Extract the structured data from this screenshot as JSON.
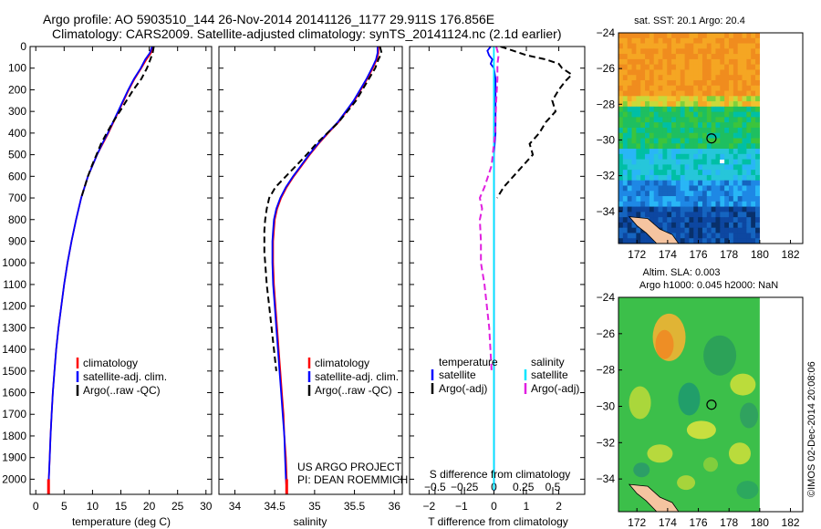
{
  "header": {
    "line1": "Argo profile: AO 5903510_144 26-Nov-2014 20141126_1177 29.911S 176.856E",
    "line2": "Climatology: CARS2009. Satellite-adjusted climatology: synTS_20141124.nc (2.1d earlier)"
  },
  "colors": {
    "climatology": "#ff0000",
    "satellite": "#0000ff",
    "argo": "#000000",
    "sal_satellite": "#00e5ff",
    "sal_argo": "#e020e0",
    "land": "#f5c4a0"
  },
  "chart_data": [
    {
      "type": "line",
      "panel": "temperature",
      "xlabel": "temperature (deg C)",
      "xlim": [
        -1,
        31
      ],
      "xticks": [
        0,
        5,
        10,
        15,
        20,
        25,
        30
      ],
      "ylim": [
        2070,
        0
      ],
      "yticks": [
        0,
        100,
        200,
        300,
        400,
        500,
        600,
        700,
        800,
        900,
        1000,
        1100,
        1200,
        1300,
        1400,
        1500,
        1600,
        1700,
        1800,
        1900,
        2000
      ],
      "series": [
        {
          "name": "climatology",
          "color": "#ff0000",
          "dash": "",
          "depth": [
            0,
            30,
            60,
            100,
            150,
            200,
            250,
            300,
            350,
            400,
            450,
            500,
            550,
            600,
            650,
            700,
            800,
            900,
            1000,
            1100,
            1200,
            1300,
            1400,
            1500,
            1600,
            1700,
            1800,
            1900,
            2000,
            2050
          ],
          "values": [
            20.6,
            20.3,
            19.5,
            18.6,
            17.4,
            16.4,
            15.5,
            14.6,
            13.7,
            12.8,
            11.8,
            10.8,
            10.0,
            9.2,
            8.6,
            8.0,
            7.1,
            6.3,
            5.6,
            5.0,
            4.5,
            4.0,
            3.6,
            3.3,
            3.0,
            2.8,
            2.6,
            2.45,
            2.3,
            2.25
          ]
        },
        {
          "name": "satellite-adj. clim.",
          "color": "#0000ff",
          "dash": "",
          "depth": [
            0,
            30,
            60,
            100,
            150,
            200,
            250,
            300,
            350,
            400,
            450,
            500,
            550,
            600,
            650,
            700,
            800,
            900,
            1000,
            1100,
            1200,
            1300,
            1400,
            1500,
            1600,
            1700,
            1800,
            1900,
            2000,
            2050
          ],
          "values": [
            20.5,
            20.1,
            19.3,
            18.5,
            17.3,
            16.3,
            15.4,
            14.5,
            13.6,
            12.7,
            11.7,
            10.8,
            10.0,
            9.2,
            8.6,
            8.0,
            7.1,
            6.3,
            5.6,
            5.0,
            4.5,
            4.0,
            3.6,
            3.3,
            3.0,
            2.8,
            2.6,
            2.45,
            2.3,
            2.25
          ]
        },
        {
          "name": "Argo(..raw -QC)",
          "color": "#000000",
          "dash": "7,4",
          "depth": [
            0,
            30,
            60,
            100,
            150,
            200,
            250,
            300,
            350,
            400,
            450,
            500,
            550,
            600,
            650,
            700
          ],
          "values": [
            20.8,
            20.6,
            20.2,
            19.6,
            18.6,
            17.2,
            16.0,
            14.8,
            13.6,
            12.5,
            11.5,
            10.7,
            9.9,
            9.2,
            8.6,
            8.0
          ]
        }
      ],
      "legend": [
        "climatology",
        "satellite-adj. clim.",
        "Argo(..raw -QC)"
      ]
    },
    {
      "type": "line",
      "panel": "salinity",
      "xlabel": "salinity",
      "xlim": [
        33.8,
        36.1
      ],
      "xticks": [
        34,
        34.5,
        35,
        35.5,
        36
      ],
      "ylim": [
        2070,
        0
      ],
      "series": [
        {
          "name": "climatology",
          "color": "#ff0000",
          "dash": "",
          "depth": [
            0,
            30,
            60,
            100,
            150,
            200,
            250,
            300,
            350,
            400,
            450,
            500,
            550,
            600,
            650,
            700,
            750,
            800,
            850,
            900,
            950,
            1000,
            1100,
            1200,
            1300,
            1400,
            1500,
            1600,
            1700,
            1800,
            1900,
            2000,
            2050
          ],
          "values": [
            35.8,
            35.8,
            35.78,
            35.73,
            35.66,
            35.58,
            35.5,
            35.4,
            35.3,
            35.17,
            35.05,
            34.94,
            34.84,
            34.74,
            34.65,
            34.58,
            34.53,
            34.5,
            34.49,
            34.48,
            34.48,
            34.48,
            34.49,
            34.51,
            34.53,
            34.55,
            34.57,
            34.59,
            34.61,
            34.62,
            34.64,
            34.65,
            34.65
          ]
        },
        {
          "name": "satellite-adj. clim.",
          "color": "#0000ff",
          "dash": "",
          "depth": [
            0,
            30,
            60,
            100,
            150,
            200,
            250,
            300,
            350,
            400,
            450,
            500,
            550,
            600,
            650,
            700,
            750,
            800,
            850,
            900,
            950,
            1000,
            1100,
            1200,
            1300,
            1400,
            1500,
            1600,
            1700,
            1800,
            1900,
            2000,
            2050
          ],
          "values": [
            35.79,
            35.79,
            35.77,
            35.72,
            35.65,
            35.57,
            35.49,
            35.39,
            35.29,
            35.16,
            35.04,
            34.93,
            34.83,
            34.73,
            34.64,
            34.57,
            34.52,
            34.49,
            34.48,
            34.47,
            34.47,
            34.47,
            34.48,
            34.5,
            34.52,
            34.54,
            34.56,
            34.58,
            34.6,
            34.62,
            34.63,
            34.64,
            34.65
          ]
        },
        {
          "name": "Argo(..raw -QC)",
          "color": "#000000",
          "dash": "7,4",
          "depth": [
            0,
            30,
            60,
            100,
            150,
            200,
            250,
            300,
            350,
            400,
            450,
            500,
            550,
            600,
            650,
            700,
            750,
            800,
            850,
            900,
            950,
            1000,
            1100,
            1200,
            1300,
            1400,
            1500
          ],
          "values": [
            35.82,
            35.84,
            35.8,
            35.76,
            35.68,
            35.6,
            35.52,
            35.41,
            35.3,
            35.16,
            35.02,
            34.9,
            34.77,
            34.64,
            34.51,
            34.43,
            34.4,
            34.38,
            34.37,
            34.37,
            34.37,
            34.38,
            34.4,
            34.43,
            34.46,
            34.49,
            34.52
          ]
        }
      ],
      "legend": [
        "climatology",
        "satellite-adj. clim.",
        "Argo(..raw -QC)"
      ],
      "annotation": [
        "US ARGO PROJECT",
        "PI: DEAN ROEMMICH"
      ]
    },
    {
      "type": "line",
      "panel": "difference",
      "xlabel": "T difference from climatology",
      "xlabel_top": "S difference from climatology",
      "xlim": [
        -2.6,
        2.8
      ],
      "xticks": [
        -2,
        -1,
        0,
        1,
        2
      ],
      "sticks": [
        {
          "value": -0.5,
          "label": "−0.5"
        },
        {
          "value": -0.25,
          "label": "−0.25"
        },
        {
          "value": 0,
          "label": "0"
        },
        {
          "value": 0.25,
          "label": "0.25"
        },
        {
          "value": 0.5,
          "label": "0.5"
        }
      ],
      "ylim": [
        2070,
        0
      ],
      "series": [
        {
          "name": "T satellite",
          "color": "#0000ff",
          "dash": "",
          "scale": "T",
          "depth": [
            0,
            20,
            40,
            60,
            80,
            100,
            150,
            200,
            300,
            400,
            500,
            600,
            700,
            800,
            1000,
            1200,
            1400,
            1600,
            1800,
            2000,
            2050
          ],
          "values": [
            -0.1,
            -0.2,
            -0.15,
            -0.05,
            -0.1,
            0.0,
            0.05,
            0.05,
            0.05,
            0.05,
            0.0,
            0.0,
            0.0,
            0.0,
            0.0,
            0.0,
            0.0,
            0.0,
            0.0,
            0.0,
            0.0
          ]
        },
        {
          "name": "T Argo(-adj)",
          "color": "#000000",
          "dash": "7,4",
          "scale": "T",
          "depth": [
            0,
            20,
            40,
            60,
            80,
            100,
            130,
            160,
            200,
            250,
            300,
            350,
            400,
            450,
            500,
            550,
            600,
            650,
            700
          ],
          "values": [
            0.2,
            0.6,
            1.0,
            1.6,
            2.0,
            2.1,
            2.4,
            2.2,
            2.0,
            1.8,
            1.9,
            1.6,
            1.4,
            1.1,
            1.2,
            0.9,
            0.6,
            0.3,
            0.1
          ]
        },
        {
          "name": "S satellite",
          "color": "#00e5ff",
          "dash": "",
          "scale": "S",
          "depth": [
            0,
            100,
            200,
            400,
            600,
            800,
            1000,
            1400,
            1800,
            2050
          ],
          "values": [
            0.0,
            0.0,
            0.0,
            0.0,
            0.0,
            0.0,
            0.0,
            0.0,
            0.0,
            0.0
          ]
        },
        {
          "name": "S Argo(-adj)",
          "color": "#e020e0",
          "dash": "7,4",
          "scale": "S",
          "depth": [
            0,
            40,
            80,
            150,
            250,
            400,
            550,
            650,
            700,
            750,
            800,
            900,
            1000,
            1100,
            1200,
            1300,
            1400,
            1500
          ],
          "values": [
            0.02,
            0.04,
            0.03,
            0.03,
            0.02,
            0.01,
            -0.02,
            -0.08,
            -0.12,
            -0.1,
            -0.12,
            -0.11,
            -0.11,
            -0.08,
            -0.06,
            -0.04,
            -0.03,
            -0.02
          ]
        }
      ],
      "legend_temperature": {
        "title": "temperature",
        "items": [
          "satellite",
          "Argo(-adj)"
        ]
      },
      "legend_salinity": {
        "title": "salinity",
        "items": [
          "satellite",
          "Argo(-adj)"
        ]
      }
    },
    {
      "type": "heatmap",
      "panel": "sst_map",
      "title": "sat. SST: 20.1  Argo: 20.4",
      "xticks": [
        172,
        174,
        176,
        178,
        180,
        182
      ],
      "yticks": [
        -24,
        -26,
        -28,
        -30,
        -32,
        -34
      ],
      "xlim": [
        170.8,
        182.8
      ],
      "ylim": [
        -35.8,
        -24
      ],
      "marker": {
        "lon": 176.856,
        "lat": -29.911
      }
    },
    {
      "type": "heatmap",
      "panel": "sla_map",
      "title_line1": "Altim. SLA: 0.003",
      "title_line2": "Argo h1000: 0.045 h2000: NaN",
      "xticks": [
        172,
        174,
        176,
        178,
        180,
        182
      ],
      "yticks": [
        -24,
        -26,
        -28,
        -30,
        -32,
        -34
      ],
      "xlim": [
        170.8,
        182.8
      ],
      "ylim": [
        -35.8,
        -24
      ],
      "marker": {
        "lon": 176.856,
        "lat": -29.911
      }
    }
  ],
  "watermark": "©IMOS 02-Dec-2014 20:08:06"
}
